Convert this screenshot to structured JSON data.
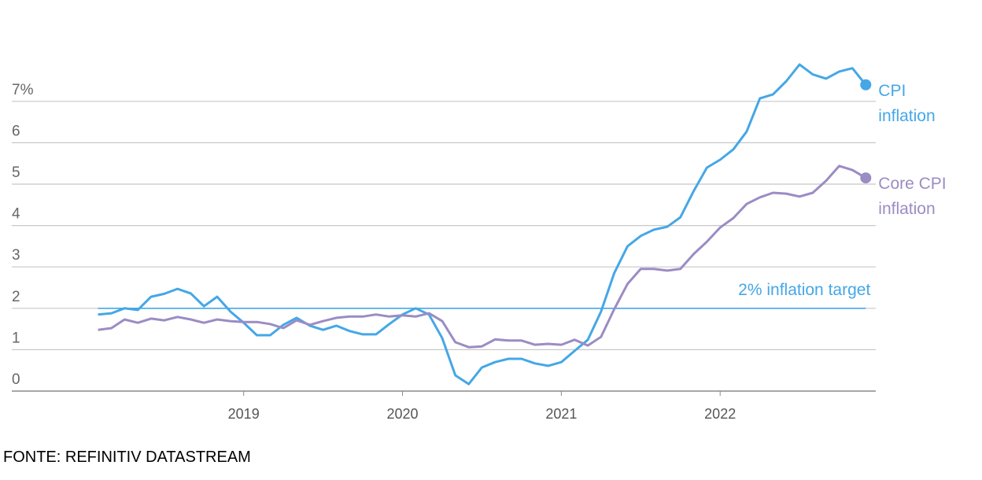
{
  "chart_data": {
    "type": "line",
    "x": [
      2018.083,
      2018.167,
      2018.25,
      2018.333,
      2018.417,
      2018.5,
      2018.583,
      2018.667,
      2018.75,
      2018.833,
      2018.917,
      2019,
      2019.083,
      2019.167,
      2019.25,
      2019.333,
      2019.417,
      2019.5,
      2019.583,
      2019.667,
      2019.75,
      2019.833,
      2019.917,
      2020,
      2020.083,
      2020.167,
      2020.25,
      2020.333,
      2020.417,
      2020.5,
      2020.583,
      2020.667,
      2020.75,
      2020.833,
      2020.917,
      2021,
      2021.083,
      2021.167,
      2021.25,
      2021.333,
      2021.417,
      2021.5,
      2021.583,
      2021.667,
      2021.75,
      2021.833,
      2021.917,
      2022,
      2022.083,
      2022.167,
      2022.25,
      2022.333,
      2022.417,
      2022.5,
      2022.583,
      2022.667,
      2022.75,
      2022.833,
      2022.917
    ],
    "series": [
      {
        "name": "CPI inflation",
        "color": "#45a7e6",
        "values": [
          1.85,
          1.88,
          2.0,
          1.96,
          2.28,
          2.35,
          2.47,
          2.36,
          2.05,
          2.28,
          1.92,
          1.65,
          1.35,
          1.35,
          1.6,
          1.77,
          1.58,
          1.48,
          1.58,
          1.45,
          1.37,
          1.37,
          1.62,
          1.85,
          2.0,
          1.85,
          1.28,
          0.38,
          0.17,
          0.57,
          0.7,
          0.78,
          0.78,
          0.67,
          0.61,
          0.7,
          0.97,
          1.24,
          1.92,
          2.85,
          3.5,
          3.75,
          3.9,
          3.97,
          4.2,
          4.83,
          5.4,
          5.59,
          5.84,
          6.27,
          7.07,
          7.17,
          7.49,
          7.89,
          7.65,
          7.55,
          7.72,
          7.8,
          7.4
        ]
      },
      {
        "name": "Core CPI inflation",
        "color": "#9b8cc4",
        "values": [
          1.48,
          1.52,
          1.73,
          1.65,
          1.75,
          1.71,
          1.79,
          1.73,
          1.65,
          1.73,
          1.69,
          1.67,
          1.67,
          1.62,
          1.52,
          1.71,
          1.6,
          1.69,
          1.77,
          1.8,
          1.8,
          1.85,
          1.8,
          1.83,
          1.8,
          1.88,
          1.69,
          1.18,
          1.06,
          1.08,
          1.25,
          1.22,
          1.22,
          1.12,
          1.14,
          1.12,
          1.24,
          1.1,
          1.31,
          1.98,
          2.59,
          2.95,
          2.95,
          2.91,
          2.95,
          3.31,
          3.61,
          3.95,
          4.18,
          4.52,
          4.68,
          4.79,
          4.77,
          4.7,
          4.79,
          5.08,
          5.44,
          5.34,
          5.15
        ]
      }
    ],
    "target": {
      "label": "2% inflation target",
      "value": 2
    },
    "xlim": [
      2017.54,
      2022.98
    ],
    "xticks": [
      2019,
      2020,
      2021,
      2022
    ],
    "ylim": [
      0,
      7.6
    ],
    "yticks": [
      0,
      1,
      2,
      3,
      4,
      5,
      6,
      {
        "value": 7,
        "label": "7%"
      }
    ],
    "grid": true,
    "source": "FONTE: REFINITIV DATASTREAM"
  }
}
